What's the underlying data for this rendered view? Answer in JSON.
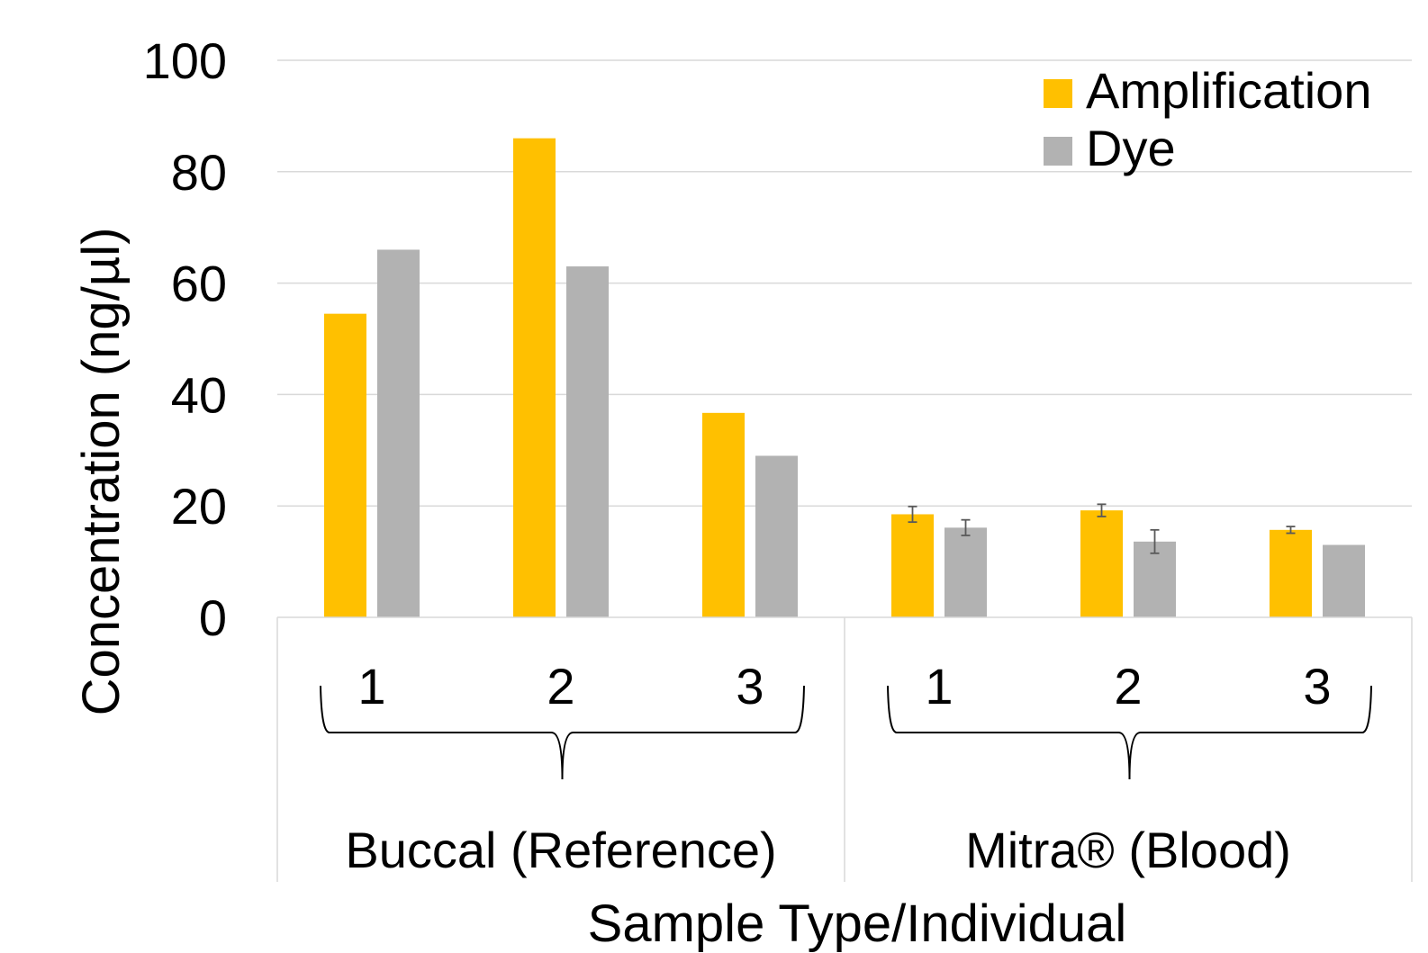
{
  "chart_data": {
    "type": "bar",
    "title": "",
    "xlabel": "Sample Type/Individual",
    "ylabel": "Concentration (ng/µl)",
    "ylim": [
      0,
      100
    ],
    "yticks": [
      "0",
      "20",
      "40",
      "60",
      "80",
      "100"
    ],
    "grid": true,
    "legend_position": "top-right",
    "groups": [
      {
        "label": "Buccal (Reference)",
        "categories": [
          "1",
          "2",
          "3"
        ]
      },
      {
        "label": "Mitra® (Blood)",
        "categories": [
          "1",
          "2",
          "3"
        ]
      }
    ],
    "categories": [
      "1",
      "2",
      "3",
      "1",
      "2",
      "3"
    ],
    "series": [
      {
        "name": "Amplification",
        "color": "#FFC000",
        "values": [
          54.5,
          86,
          36.7,
          18.5,
          19.2,
          15.7
        ],
        "errors": [
          null,
          null,
          null,
          1.4,
          1.1,
          0.6
        ]
      },
      {
        "name": "Dye",
        "color": "#B2B2B2",
        "values": [
          66,
          63,
          29,
          16.1,
          13.6,
          13
        ],
        "errors": [
          null,
          null,
          null,
          1.4,
          2.1,
          null
        ]
      }
    ]
  }
}
